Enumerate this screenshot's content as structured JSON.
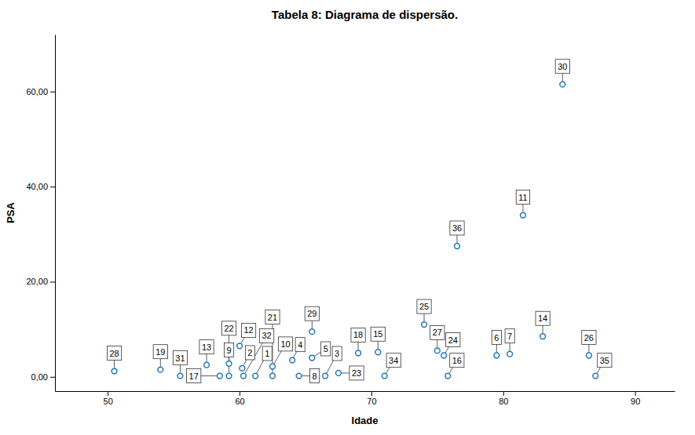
{
  "chart_data": {
    "type": "scatter",
    "title": "Tabela 8: Diagrama de dispersão.",
    "xlabel": "Idade",
    "ylabel": "PSA",
    "labels": [
      "28",
      "19",
      "31",
      "13",
      "17",
      "22",
      "9",
      "12",
      "2",
      "32",
      "1",
      "10",
      "21",
      "4",
      "8",
      "5",
      "29",
      "3",
      "23",
      "18",
      "15",
      "34",
      "25",
      "27",
      "24",
      "16",
      "36",
      "6",
      "7",
      "11",
      "14",
      "30",
      "26",
      "35"
    ],
    "x": [
      50.5,
      54.0,
      55.5,
      57.5,
      58.5,
      59.2,
      59.2,
      60.0,
      60.2,
      60.3,
      61.2,
      62.5,
      62.5,
      64.0,
      64.5,
      65.5,
      65.5,
      66.5,
      67.5,
      69.0,
      70.5,
      71.0,
      74.0,
      75.0,
      75.5,
      75.8,
      76.5,
      79.5,
      80.5,
      81.5,
      83.0,
      84.5,
      86.5,
      87.0
    ],
    "values": [
      1.2,
      1.5,
      0.2,
      2.5,
      0.2,
      2.8,
      0.2,
      6.5,
      1.8,
      0.2,
      0.2,
      2.2,
      0.2,
      3.5,
      0.2,
      4.0,
      9.5,
      0.2,
      0.8,
      5.0,
      5.2,
      0.2,
      11.0,
      5.5,
      4.5,
      0.2,
      27.5,
      4.5,
      4.8,
      34.0,
      8.5,
      61.5,
      4.5,
      0.2
    ],
    "xlim": [
      46,
      93
    ],
    "ylim": [
      -3,
      72
    ],
    "xticks": [
      50,
      60,
      70,
      80,
      90
    ],
    "yticks": [
      {
        "value": 0,
        "label": "0,00"
      },
      {
        "value": 20,
        "label": "20,00"
      },
      {
        "value": 40,
        "label": "40,00"
      },
      {
        "value": 60,
        "label": "60,00"
      }
    ],
    "marker": "circle",
    "grid": false
  }
}
